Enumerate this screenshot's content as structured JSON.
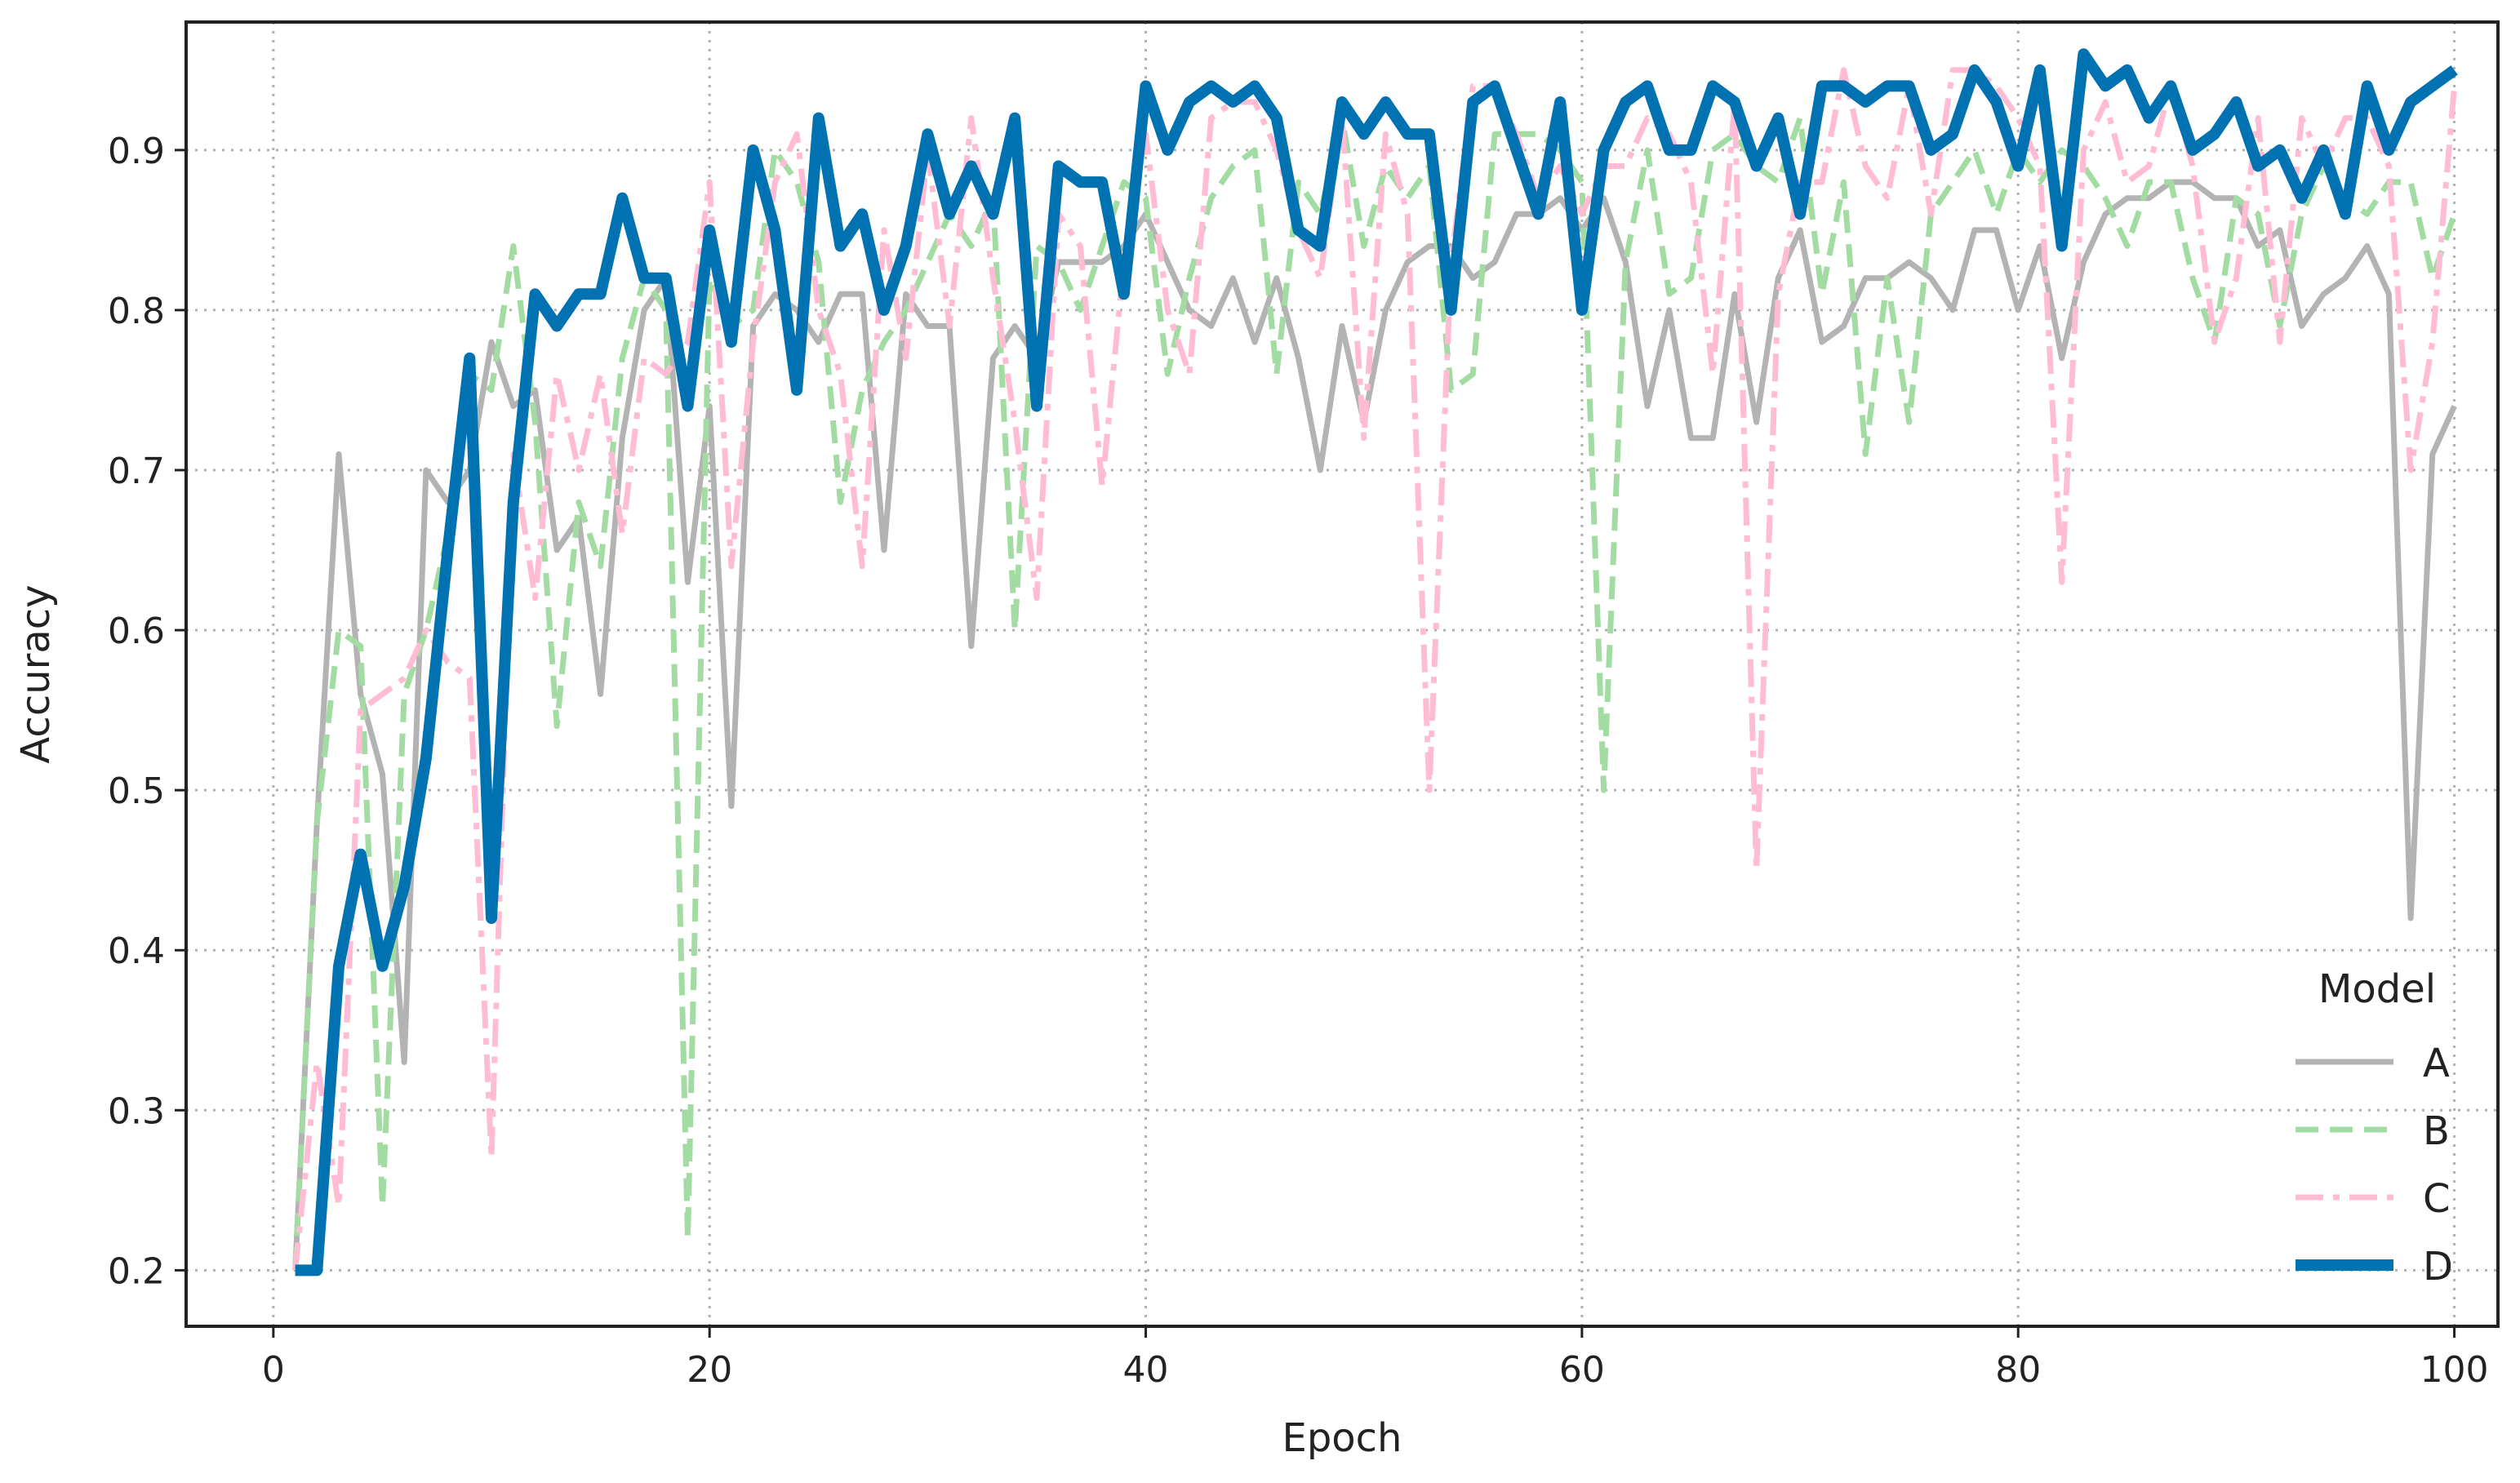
{
  "chart_data": {
    "type": "line",
    "title": "",
    "xlabel": "Epoch",
    "ylabel": "Accuracy",
    "xlim": [
      -4,
      102
    ],
    "ylim": [
      0.165,
      0.98
    ],
    "xticks": [
      0,
      20,
      40,
      60,
      80,
      100
    ],
    "yticks": [
      0.2,
      0.3,
      0.4,
      0.5,
      0.6,
      0.7,
      0.8,
      0.9
    ],
    "grid": true,
    "legend": {
      "title": "Model",
      "position": "lower-right"
    },
    "x": [
      1,
      2,
      3,
      4,
      5,
      6,
      7,
      8,
      9,
      10,
      11,
      12,
      13,
      14,
      15,
      16,
      17,
      18,
      19,
      20,
      21,
      22,
      23,
      24,
      25,
      26,
      27,
      28,
      29,
      30,
      31,
      32,
      33,
      34,
      35,
      36,
      37,
      38,
      39,
      40,
      41,
      42,
      43,
      44,
      45,
      46,
      47,
      48,
      49,
      50,
      51,
      52,
      53,
      54,
      55,
      56,
      57,
      58,
      59,
      60,
      61,
      62,
      63,
      64,
      65,
      66,
      67,
      68,
      69,
      70,
      71,
      72,
      73,
      74,
      75,
      76,
      77,
      78,
      79,
      80,
      81,
      82,
      83,
      84,
      85,
      86,
      87,
      88,
      89,
      90,
      91,
      92,
      93,
      94,
      95,
      96,
      97,
      98,
      99,
      100
    ],
    "series": [
      {
        "name": "A",
        "color": "#b3b3b3",
        "dash": "solid",
        "width": 7,
        "values": [
          0.2,
          0.48,
          0.71,
          0.56,
          0.51,
          0.33,
          0.7,
          0.68,
          0.7,
          0.78,
          0.74,
          0.75,
          0.65,
          0.67,
          0.56,
          0.72,
          0.8,
          0.82,
          0.63,
          0.74,
          0.49,
          0.79,
          0.81,
          0.8,
          0.78,
          0.81,
          0.81,
          0.65,
          0.81,
          0.79,
          0.79,
          0.59,
          0.77,
          0.79,
          0.77,
          0.83,
          0.83,
          0.83,
          0.84,
          0.86,
          0.83,
          0.8,
          0.79,
          0.82,
          0.78,
          0.82,
          0.77,
          0.7,
          0.79,
          0.73,
          0.8,
          0.83,
          0.84,
          0.84,
          0.82,
          0.83,
          0.86,
          0.86,
          0.87,
          0.85,
          0.87,
          0.83,
          0.74,
          0.8,
          0.72,
          0.72,
          0.81,
          0.73,
          0.82,
          0.85,
          0.78,
          0.79,
          0.82,
          0.82,
          0.83,
          0.82,
          0.8,
          0.85,
          0.85,
          0.8,
          0.84,
          0.77,
          0.83,
          0.86,
          0.87,
          0.87,
          0.88,
          0.88,
          0.87,
          0.87,
          0.84,
          0.85,
          0.79,
          0.81,
          0.82,
          0.84,
          0.81,
          0.42,
          0.71,
          0.74
        ]
      },
      {
        "name": "B",
        "color": "#a3dca3",
        "dash": "dashed",
        "width": 7,
        "values": [
          0.2,
          0.48,
          0.6,
          0.59,
          0.24,
          0.56,
          0.6,
          0.66,
          0.76,
          0.75,
          0.84,
          0.73,
          0.54,
          0.68,
          0.64,
          0.77,
          0.82,
          0.8,
          0.22,
          0.82,
          0.79,
          0.8,
          0.9,
          0.88,
          0.83,
          0.68,
          0.75,
          0.78,
          0.8,
          0.83,
          0.86,
          0.84,
          0.87,
          0.6,
          0.84,
          0.83,
          0.8,
          0.84,
          0.88,
          0.87,
          0.76,
          0.82,
          0.87,
          0.89,
          0.9,
          0.76,
          0.88,
          0.86,
          0.92,
          0.84,
          0.89,
          0.87,
          0.89,
          0.75,
          0.76,
          0.91,
          0.91,
          0.91,
          0.9,
          0.88,
          0.5,
          0.83,
          0.9,
          0.81,
          0.82,
          0.9,
          0.91,
          0.89,
          0.88,
          0.92,
          0.81,
          0.88,
          0.71,
          0.82,
          0.73,
          0.86,
          0.88,
          0.9,
          0.86,
          0.9,
          0.88,
          0.9,
          0.89,
          0.87,
          0.84,
          0.88,
          0.88,
          0.82,
          0.78,
          0.87,
          0.86,
          0.79,
          0.86,
          0.89,
          0.87,
          0.86,
          0.88,
          0.88,
          0.82,
          0.86
        ]
      },
      {
        "name": "C",
        "color": "#ffbcd4",
        "dash": "dashdot",
        "width": 7,
        "values": [
          0.2,
          0.33,
          0.24,
          0.55,
          0.56,
          0.57,
          0.6,
          0.58,
          0.57,
          0.27,
          0.71,
          0.62,
          0.76,
          0.7,
          0.76,
          0.66,
          0.77,
          0.76,
          0.78,
          0.88,
          0.64,
          0.78,
          0.88,
          0.91,
          0.8,
          0.76,
          0.64,
          0.85,
          0.77,
          0.9,
          0.79,
          0.92,
          0.82,
          0.73,
          0.62,
          0.86,
          0.84,
          0.69,
          0.83,
          0.91,
          0.8,
          0.76,
          0.92,
          0.93,
          0.93,
          0.9,
          0.85,
          0.82,
          0.92,
          0.72,
          0.91,
          0.86,
          0.5,
          0.83,
          0.94,
          0.94,
          0.91,
          0.87,
          0.89,
          0.86,
          0.89,
          0.89,
          0.92,
          0.91,
          0.88,
          0.76,
          0.93,
          0.45,
          0.81,
          0.88,
          0.88,
          0.95,
          0.89,
          0.87,
          0.94,
          0.86,
          0.95,
          0.95,
          0.94,
          0.92,
          0.89,
          0.63,
          0.9,
          0.93,
          0.88,
          0.89,
          0.94,
          0.89,
          0.78,
          0.82,
          0.92,
          0.78,
          0.92,
          0.89,
          0.92,
          0.92,
          0.89,
          0.7,
          0.78,
          0.94
        ]
      },
      {
        "name": "D",
        "color": "#0072b2",
        "dash": "solid",
        "width": 14,
        "values": [
          0.2,
          0.2,
          0.39,
          0.46,
          0.39,
          0.44,
          0.52,
          0.65,
          0.77,
          0.42,
          0.68,
          0.81,
          0.79,
          0.81,
          0.81,
          0.87,
          0.82,
          0.82,
          0.74,
          0.85,
          0.78,
          0.9,
          0.85,
          0.75,
          0.92,
          0.84,
          0.86,
          0.8,
          0.84,
          0.91,
          0.86,
          0.89,
          0.86,
          0.92,
          0.74,
          0.89,
          0.88,
          0.88,
          0.81,
          0.94,
          0.9,
          0.93,
          0.94,
          0.93,
          0.94,
          0.92,
          0.85,
          0.84,
          0.93,
          0.91,
          0.93,
          0.91,
          0.91,
          0.8,
          0.93,
          0.94,
          0.9,
          0.86,
          0.93,
          0.8,
          0.9,
          0.93,
          0.94,
          0.9,
          0.9,
          0.94,
          0.93,
          0.89,
          0.92,
          0.86,
          0.94,
          0.94,
          0.93,
          0.94,
          0.94,
          0.9,
          0.91,
          0.95,
          0.93,
          0.89,
          0.95,
          0.84,
          0.96,
          0.94,
          0.95,
          0.92,
          0.94,
          0.9,
          0.91,
          0.93,
          0.89,
          0.9,
          0.87,
          0.9,
          0.86,
          0.94,
          0.9,
          0.93,
          0.94,
          0.95
        ]
      }
    ]
  }
}
